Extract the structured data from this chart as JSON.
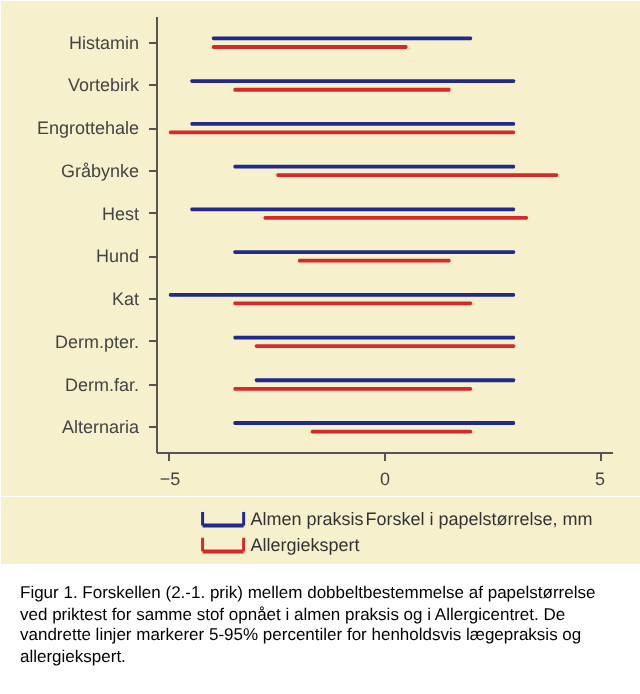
{
  "chart_data": {
    "type": "bar",
    "orientation": "horizontal",
    "xlabel": "Forskel i papelstørrelse, mm",
    "categories": [
      "Histamin",
      "Vortebirk",
      "Engrottehale",
      "Gråbynke",
      "Hest",
      "Hund",
      "Kat",
      "Derm.pter.",
      "Derm.far.",
      "Alternaria"
    ],
    "series": [
      {
        "name": "Almen praksis",
        "color": "#1f2a8c",
        "base": [
          -4,
          -4.5,
          -4.5,
          -3.5,
          -4.5,
          -3.5,
          -5,
          -3.5,
          -3,
          -3.5
        ],
        "values": [
          6,
          7.5,
          7.5,
          6.5,
          7.5,
          6.5,
          8,
          6.5,
          6,
          6.5
        ]
      },
      {
        "name": "Allergiekspert",
        "color": "#d42a2a",
        "base": [
          -4,
          -3.5,
          -5,
          -2.5,
          -2.8,
          -2,
          -3.5,
          -3,
          -3.5,
          -1.7
        ],
        "values": [
          4.5,
          5,
          8,
          6.5,
          6.1,
          3.5,
          5.5,
          6,
          5.5,
          3.7
        ]
      }
    ],
    "xlim": [
      -5.3,
      5.3
    ],
    "xticks": [
      -5,
      0,
      5
    ],
    "grid": false,
    "legend": "bottom left",
    "annotations": [
      "Figur 1. Forskellen (2.-1. prik) mellem dobbeltbestemmelse af papelstørrelse ved priktest for samme stof opnået i almen praksis og i Allergicentret. De vandrette linjer markerer 5-95% percentiler for henholdsvis lægepraksis og allergiekspert."
    ]
  }
}
